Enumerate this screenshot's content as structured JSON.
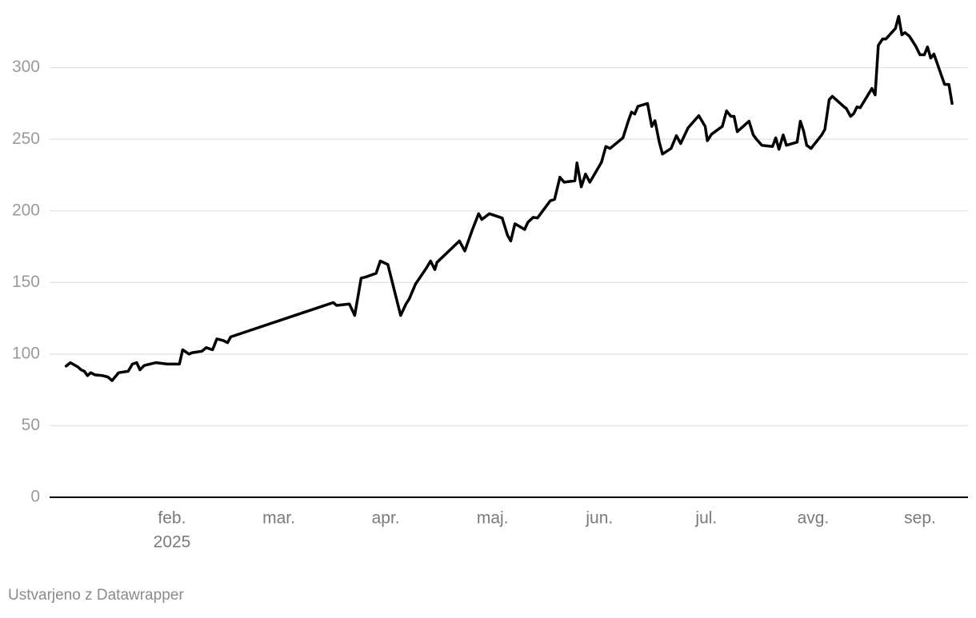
{
  "chart_data": {
    "type": "line",
    "color": "#000000",
    "x": [
      1.01,
      1.05,
      1.12,
      1.15,
      1.18,
      1.21,
      1.24,
      1.28,
      1.35,
      1.4,
      1.44,
      1.5,
      1.59,
      1.63,
      1.67,
      1.7,
      1.74,
      1.85,
      1.96,
      2.07,
      2.1,
      2.16,
      2.19,
      2.28,
      2.32,
      2.38,
      2.42,
      2.48,
      2.52,
      2.55,
      3.51,
      3.54,
      3.66,
      3.71,
      3.77,
      3.82,
      3.91,
      3.95,
      4.02,
      4.14,
      4.19,
      4.22,
      4.28,
      4.38,
      4.42,
      4.46,
      4.48,
      4.69,
      4.74,
      4.81,
      4.87,
      4.9,
      4.97,
      5.09,
      5.14,
      5.17,
      5.21,
      5.3,
      5.33,
      5.38,
      5.42,
      5.54,
      5.58,
      5.63,
      5.67,
      5.77,
      5.79,
      5.83,
      5.87,
      5.91,
      6.02,
      6.06,
      6.1,
      6.22,
      6.27,
      6.3,
      6.33,
      6.36,
      6.45,
      6.49,
      6.52,
      6.56,
      6.59,
      6.67,
      6.72,
      6.76,
      6.83,
      6.93,
      6.99,
      7.01,
      7.05,
      7.15,
      7.19,
      7.23,
      7.26,
      7.29,
      7.4,
      7.44,
      7.47,
      7.52,
      7.62,
      7.65,
      7.68,
      7.72,
      7.75,
      7.85,
      7.88,
      7.91,
      7.94,
      7.98,
      8.08,
      8.11,
      8.15,
      8.18,
      8.21,
      8.29,
      8.31,
      8.35,
      8.38,
      8.41,
      8.44,
      8.55,
      8.58,
      8.61,
      8.65,
      8.68,
      8.77,
      8.8,
      8.83,
      8.86,
      8.9,
      8.96,
      9.0,
      9.04,
      9.07,
      9.1,
      9.13,
      9.23,
      9.27,
      9.3
    ],
    "values": [
      91.6,
      94,
      91,
      89,
      88,
      85,
      87,
      85.5,
      85,
      84,
      81.5,
      87,
      88,
      93,
      94,
      89,
      92,
      94,
      93,
      93,
      103,
      100,
      101,
      102,
      104.5,
      103,
      110.6,
      109.5,
      108,
      112,
      136,
      134,
      135,
      127,
      153,
      154,
      156.4,
      165,
      162.6,
      127,
      135,
      138.5,
      149,
      160,
      165,
      159,
      164,
      179,
      172,
      186.6,
      198,
      194,
      198,
      195,
      183,
      179,
      191,
      187,
      192,
      195.5,
      195,
      207,
      208,
      223.5,
      220,
      221,
      233.5,
      216.8,
      225.7,
      220,
      234,
      245,
      243.6,
      251,
      262.6,
      269,
      267.6,
      273,
      275,
      259,
      263,
      248,
      239.7,
      243.6,
      252.5,
      247,
      258,
      266.5,
      259,
      249,
      253.6,
      259,
      269.8,
      266,
      266,
      255.3,
      262.6,
      253,
      250,
      245.8,
      245,
      251,
      243,
      253,
      245.8,
      248,
      262.6,
      256,
      245.8,
      243.6,
      253,
      257,
      277.7,
      280,
      278,
      272.6,
      271.5,
      266,
      268,
      272.6,
      272,
      285.5,
      281,
      315.6,
      320,
      320,
      327.4,
      335.8,
      323,
      324.5,
      322,
      315,
      309,
      309,
      314.5,
      306.7,
      309.5,
      288.3,
      288.3,
      275
    ],
    "xlim": [
      0.855,
      9.449
    ],
    "xticks": [
      {
        "value": 2,
        "label": "feb."
      },
      {
        "value": 3,
        "label": "mar."
      },
      {
        "value": 4,
        "label": "apr."
      },
      {
        "value": 5,
        "label": "maj."
      },
      {
        "value": 6,
        "label": "jun."
      },
      {
        "value": 7,
        "label": "jul."
      },
      {
        "value": 8,
        "label": "avg."
      },
      {
        "value": 9,
        "label": "sep."
      }
    ],
    "x_year_label": "2025",
    "ylim": [
      0,
      340
    ],
    "yticks": [
      0,
      50,
      100,
      150,
      200,
      250,
      300
    ],
    "grid": true,
    "credit": "Ustvarjeno z Datawrapper"
  }
}
